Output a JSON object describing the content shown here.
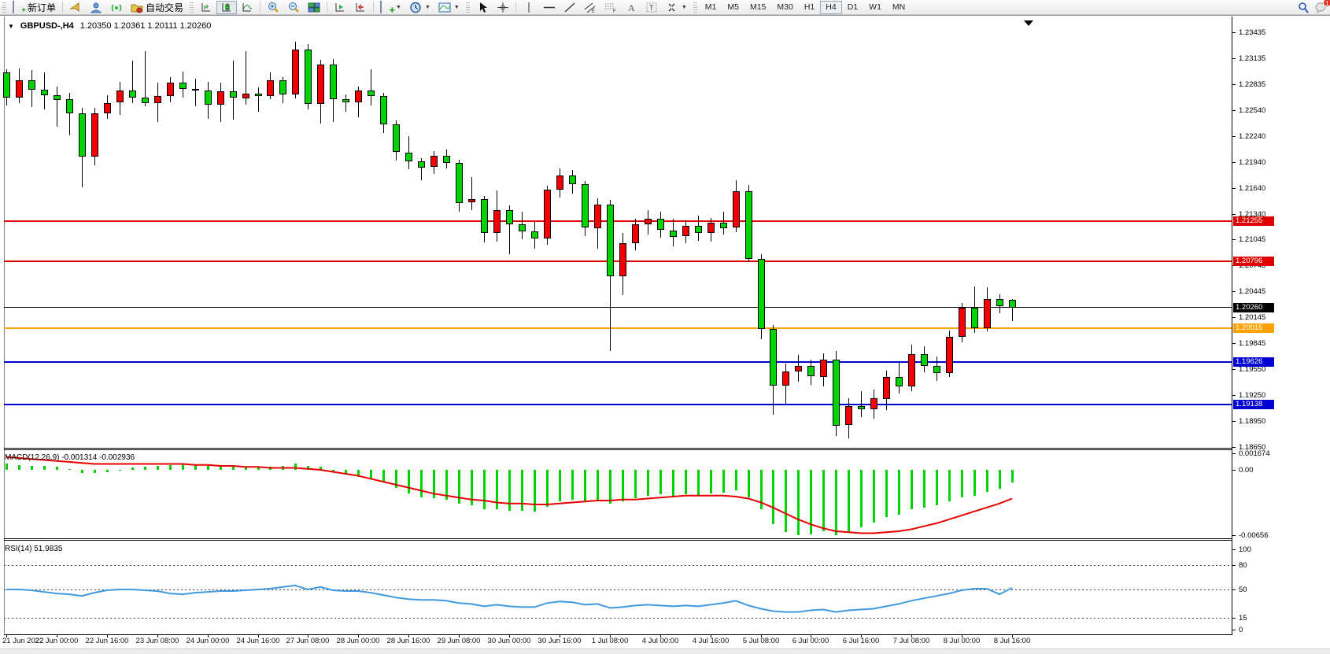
{
  "toolbar": {
    "new_order_label": "新订单",
    "auto_trading_label": "自动交易",
    "timeframes": [
      "M1",
      "M5",
      "M15",
      "M30",
      "H1",
      "H4",
      "D1",
      "W1",
      "MN"
    ],
    "active_timeframe": "H4",
    "notification_count": "1",
    "icon_names": [
      "new-order-icon",
      "megaphone-icon",
      "community-icon",
      "signal-icon",
      "autotrading-icon",
      "bar-chart-icon",
      "candlestick-icon",
      "line-chart-icon",
      "zoom-in-icon",
      "zoom-out-icon",
      "tile-windows-icon",
      "auto-scroll-icon",
      "chart-shift-icon",
      "indicators-icon",
      "periods-icon",
      "templates-icon",
      "cursor-icon",
      "crosshair-icon",
      "vertical-line-icon",
      "horizontal-line-icon",
      "trendline-icon",
      "channel-icon",
      "fibonacci-icon",
      "text-icon",
      "label-icon",
      "shapes-icon",
      "search-icon",
      "chat-icon"
    ]
  },
  "chart": {
    "symbol": "GBPUSD-,H4",
    "ohlc_text": "1.20350 1.20361 1.20111 1.20260",
    "price_ticks": [
      "1.23435",
      "1.23135",
      "1.22835",
      "1.22540",
      "1.22240",
      "1.21940",
      "1.21640",
      "1.21340",
      "1.21045",
      "1.20745",
      "1.20445",
      "1.20145",
      "1.19845",
      "1.19550",
      "1.19250",
      "1.18950",
      "1.18650"
    ],
    "price_tags": [
      {
        "price": "1.21255",
        "value": 1.21255,
        "color": "#e00000"
      },
      {
        "price": "1.20796",
        "value": 1.20796,
        "color": "#e00000"
      },
      {
        "price": "1.20260",
        "value": 1.2026,
        "color": "#000000"
      },
      {
        "price": "1.20015",
        "value": 1.20015,
        "color": "#ffa200"
      },
      {
        "price": "1.19626",
        "value": 1.19626,
        "color": "#0000d4"
      },
      {
        "price": "1.19138",
        "value": 1.19138,
        "color": "#0000d4"
      }
    ],
    "hlines": [
      {
        "value": 1.21255,
        "color": "#e00000",
        "thickness": 2
      },
      {
        "value": 1.20796,
        "color": "#e00000",
        "thickness": 2
      },
      {
        "value": 1.2026,
        "color": "#000000",
        "thickness": 1
      },
      {
        "value": 1.20015,
        "color": "#ffa200",
        "thickness": 2
      },
      {
        "value": 1.19626,
        "color": "#0000d4",
        "thickness": 2
      },
      {
        "value": 1.19138,
        "color": "#0000d4",
        "thickness": 2
      }
    ],
    "macd_label": "MACD(12,26,9) -0.001314 -0.002936",
    "macd_ticks": [
      {
        "label": "0.001674",
        "value": 0.001674
      },
      {
        "label": "0.00",
        "value": 0.0
      },
      {
        "label": "-0.00656",
        "value": -0.00656
      }
    ],
    "rsi_label": "RSI(14) 51.9835",
    "rsi_ticks": [
      {
        "label": "100",
        "value": 100,
        "dashed": false
      },
      {
        "label": "80",
        "value": 80,
        "dashed": true
      },
      {
        "label": "50",
        "value": 50,
        "dashed": true
      },
      {
        "label": "15",
        "value": 15,
        "dashed": true
      },
      {
        "label": "0",
        "value": 0,
        "dashed": false
      }
    ]
  },
  "chart_data": {
    "type": "candlestick",
    "title": "GBPUSD- H4",
    "up_color": "#f40000",
    "down_color": "#00d300",
    "ylim": [
      1.1865,
      1.2359
    ],
    "x_labels": [
      "21 Jun 2022",
      "22 Jun 00:00",
      "22 Jun 16:00",
      "23 Jun 08:00",
      "24 Jun 00:00",
      "24 Jun 16:00",
      "27 Jun 08:00",
      "28 Jun 00:00",
      "28 Jun 16:00",
      "29 Jun 08:00",
      "30 Jun 00:00",
      "30 Jun 16:00",
      "1 Jul 08:00",
      "4 Jul 00:00",
      "4 Jul 16:00",
      "5 Jul 08:00",
      "6 Jul 00:00",
      "6 Jul 16:00",
      "7 Jul 08:00",
      "8 Jul 00:00",
      "8 Jul 16:00"
    ],
    "bars_per_label": 4,
    "candles": [
      [
        1.2297,
        1.2301,
        1.2259,
        1.2268
      ],
      [
        1.2268,
        1.2302,
        1.2262,
        1.2288
      ],
      [
        1.2288,
        1.23,
        1.2257,
        1.2277
      ],
      [
        1.2277,
        1.2297,
        1.2254,
        1.2271
      ],
      [
        1.2271,
        1.2281,
        1.2235,
        1.2266
      ],
      [
        1.2266,
        1.2274,
        1.2225,
        1.225
      ],
      [
        1.225,
        1.2256,
        1.2164,
        1.22
      ],
      [
        1.22,
        1.2256,
        1.219,
        1.225
      ],
      [
        1.225,
        1.2271,
        1.2244,
        1.2262
      ],
      [
        1.2262,
        1.2286,
        1.2248,
        1.2276
      ],
      [
        1.2276,
        1.2311,
        1.2262,
        1.2268
      ],
      [
        1.2268,
        1.2322,
        1.2258,
        1.2262
      ],
      [
        1.2262,
        1.2285,
        1.224,
        1.227
      ],
      [
        1.227,
        1.2292,
        1.2263,
        1.2285
      ],
      [
        1.2285,
        1.2298,
        1.2268,
        1.2278
      ],
      [
        1.2278,
        1.229,
        1.2258,
        1.2276
      ],
      [
        1.2276,
        1.2286,
        1.2243,
        1.226
      ],
      [
        1.226,
        1.2285,
        1.224,
        1.2275
      ],
      [
        1.2275,
        1.2311,
        1.2243,
        1.2268
      ],
      [
        1.2268,
        1.2322,
        1.226,
        1.2273
      ],
      [
        1.2273,
        1.228,
        1.2252,
        1.227
      ],
      [
        1.227,
        1.2297,
        1.2266,
        1.2288
      ],
      [
        1.2288,
        1.2292,
        1.2262,
        1.2272
      ],
      [
        1.2272,
        1.2333,
        1.2268,
        1.2324
      ],
      [
        1.2324,
        1.233,
        1.2255,
        1.2261
      ],
      [
        1.2261,
        1.2312,
        1.2238,
        1.2306
      ],
      [
        1.2306,
        1.2313,
        1.224,
        1.2266
      ],
      [
        1.2266,
        1.2272,
        1.2252,
        1.2262
      ],
      [
        1.2262,
        1.2281,
        1.2246,
        1.2276
      ],
      [
        1.2276,
        1.2301,
        1.2259,
        1.227
      ],
      [
        1.227,
        1.2274,
        1.2228,
        1.2237
      ],
      [
        1.2237,
        1.2242,
        1.2196,
        1.2205
      ],
      [
        1.2205,
        1.2224,
        1.2186,
        1.2195
      ],
      [
        1.2195,
        1.2198,
        1.2173,
        1.2188
      ],
      [
        1.2188,
        1.2206,
        1.218,
        1.2201
      ],
      [
        1.2201,
        1.2208,
        1.2186,
        1.2193
      ],
      [
        1.2193,
        1.2196,
        1.2136,
        1.2147
      ],
      [
        1.2147,
        1.2176,
        1.2138,
        1.2151
      ],
      [
        1.2151,
        1.2155,
        1.2101,
        1.2112
      ],
      [
        1.2112,
        1.2161,
        1.2102,
        1.2138
      ],
      [
        1.2138,
        1.2144,
        1.2088,
        1.2122
      ],
      [
        1.2122,
        1.2136,
        1.2104,
        1.2114
      ],
      [
        1.2114,
        1.2125,
        1.2094,
        1.2106
      ],
      [
        1.2106,
        1.2166,
        1.2098,
        1.2162
      ],
      [
        1.2162,
        1.2186,
        1.2152,
        1.2178
      ],
      [
        1.2178,
        1.2185,
        1.2158,
        1.2168
      ],
      [
        1.2168,
        1.2172,
        1.2108,
        1.2118
      ],
      [
        1.2118,
        1.2152,
        1.2094,
        1.2145
      ],
      [
        1.2145,
        1.215,
        1.1976,
        1.2062
      ],
      [
        1.2062,
        1.2112,
        1.204,
        1.21
      ],
      [
        1.21,
        1.2128,
        1.2092,
        1.2122
      ],
      [
        1.2122,
        1.2138,
        1.211,
        1.2128
      ],
      [
        1.2128,
        1.2136,
        1.2106,
        1.2115
      ],
      [
        1.2115,
        1.2128,
        1.2096,
        1.2108
      ],
      [
        1.2108,
        1.2126,
        1.21,
        1.212
      ],
      [
        1.212,
        1.2132,
        1.2103,
        1.2112
      ],
      [
        1.2112,
        1.2129,
        1.2102,
        1.2124
      ],
      [
        1.2124,
        1.2136,
        1.211,
        1.2118
      ],
      [
        1.2118,
        1.2173,
        1.2113,
        1.216
      ],
      [
        1.216,
        1.2167,
        1.2078,
        1.2082
      ],
      [
        1.2082,
        1.2087,
        1.1989,
        1.2001
      ],
      [
        1.2001,
        1.2006,
        1.1902,
        1.1936
      ],
      [
        1.1936,
        1.1961,
        1.1915,
        1.1952
      ],
      [
        1.1952,
        1.1971,
        1.194,
        1.1958
      ],
      [
        1.1958,
        1.1966,
        1.1937,
        1.1946
      ],
      [
        1.1946,
        1.1973,
        1.1935,
        1.1966
      ],
      [
        1.1966,
        1.1976,
        1.1878,
        1.189
      ],
      [
        1.189,
        1.1921,
        1.1875,
        1.1912
      ],
      [
        1.1912,
        1.1929,
        1.1899,
        1.1908
      ],
      [
        1.1908,
        1.1931,
        1.1897,
        1.1921
      ],
      [
        1.1921,
        1.1953,
        1.1908,
        1.1946
      ],
      [
        1.1946,
        1.1963,
        1.1927,
        1.1935
      ],
      [
        1.1935,
        1.1983,
        1.1929,
        1.1972
      ],
      [
        1.1972,
        1.1981,
        1.1951,
        1.1958
      ],
      [
        1.1958,
        1.1969,
        1.1941,
        1.195
      ],
      [
        1.195,
        1.1999,
        1.1945,
        1.1992
      ],
      [
        1.1992,
        1.2031,
        1.1986,
        1.2026
      ],
      [
        1.2026,
        1.205,
        1.1996,
        1.2002
      ],
      [
        1.2002,
        1.2049,
        1.1998,
        1.2036
      ],
      [
        1.2036,
        1.2041,
        1.2019,
        1.2028
      ],
      [
        1.2035,
        1.2036,
        1.2011,
        1.2026
      ]
    ],
    "indicators": {
      "macd_histogram": [
        0.0006,
        0.0005,
        0.0004,
        0.0004,
        0.0003,
        0.0001,
        -0.0003,
        -0.0003,
        -0.0002,
        0.0,
        0.0002,
        0.0003,
        0.0004,
        0.0005,
        0.0006,
        0.0005,
        0.0004,
        0.0004,
        0.0003,
        0.0003,
        0.0002,
        0.0003,
        0.0004,
        0.0006,
        0.0004,
        0.0003,
        -0.0002,
        -0.0005,
        -0.0007,
        -0.0009,
        -0.0013,
        -0.0018,
        -0.0024,
        -0.0028,
        -0.0029,
        -0.003,
        -0.0034,
        -0.0036,
        -0.004,
        -0.004,
        -0.0041,
        -0.0041,
        -0.0042,
        -0.0037,
        -0.0032,
        -0.003,
        -0.0032,
        -0.0031,
        -0.0034,
        -0.0032,
        -0.0029,
        -0.0026,
        -0.0025,
        -0.0026,
        -0.0025,
        -0.0026,
        -0.0024,
        -0.0023,
        -0.0021,
        -0.0028,
        -0.004,
        -0.0055,
        -0.0063,
        -0.0066,
        -0.0065,
        -0.0062,
        -0.0066,
        -0.0063,
        -0.0058,
        -0.0053,
        -0.0048,
        -0.0045,
        -0.004,
        -0.0038,
        -0.0036,
        -0.0032,
        -0.0028,
        -0.0026,
        -0.0022,
        -0.0019,
        -0.0013
      ],
      "macd_signal": [
        0.0013,
        0.0012,
        0.0011,
        0.001,
        0.0009,
        0.0008,
        0.0007,
        0.0006,
        0.0006,
        0.0006,
        0.0006,
        0.0006,
        0.0006,
        0.0006,
        0.0006,
        0.0005,
        0.0005,
        0.0004,
        0.0004,
        0.0003,
        0.0003,
        0.0002,
        0.0002,
        0.0002,
        0.0001,
        0.0,
        -0.0002,
        -0.0004,
        -0.0006,
        -0.0009,
        -0.0012,
        -0.0015,
        -0.0018,
        -0.0021,
        -0.0024,
        -0.0026,
        -0.0028,
        -0.003,
        -0.0031,
        -0.0033,
        -0.0034,
        -0.0034,
        -0.0035,
        -0.0035,
        -0.0034,
        -0.0033,
        -0.0032,
        -0.0031,
        -0.0031,
        -0.003,
        -0.003,
        -0.0029,
        -0.0028,
        -0.0027,
        -0.0026,
        -0.0026,
        -0.0026,
        -0.0026,
        -0.0027,
        -0.0029,
        -0.0033,
        -0.0038,
        -0.0044,
        -0.005,
        -0.0055,
        -0.0059,
        -0.0062,
        -0.0063,
        -0.0064,
        -0.0064,
        -0.0063,
        -0.0062,
        -0.006,
        -0.0057,
        -0.0054,
        -0.005,
        -0.0046,
        -0.0042,
        -0.0038,
        -0.0034,
        -0.0029
      ],
      "rsi": [
        50,
        50,
        49,
        47,
        45,
        44,
        42,
        46,
        49,
        50,
        50,
        49,
        48,
        45,
        44,
        46,
        47,
        48,
        48,
        49,
        50,
        51,
        53,
        55,
        50,
        53,
        49,
        48,
        48,
        46,
        43,
        40,
        38,
        37,
        37,
        36,
        33,
        32,
        29,
        31,
        29,
        28,
        28,
        33,
        35,
        34,
        31,
        32,
        27,
        28,
        30,
        31,
        30,
        29,
        30,
        29,
        31,
        33,
        36,
        30,
        26,
        23,
        22,
        22,
        24,
        25,
        22,
        24,
        25,
        26,
        29,
        32,
        36,
        39,
        42,
        45,
        49,
        51,
        51,
        44,
        52
      ]
    }
  }
}
